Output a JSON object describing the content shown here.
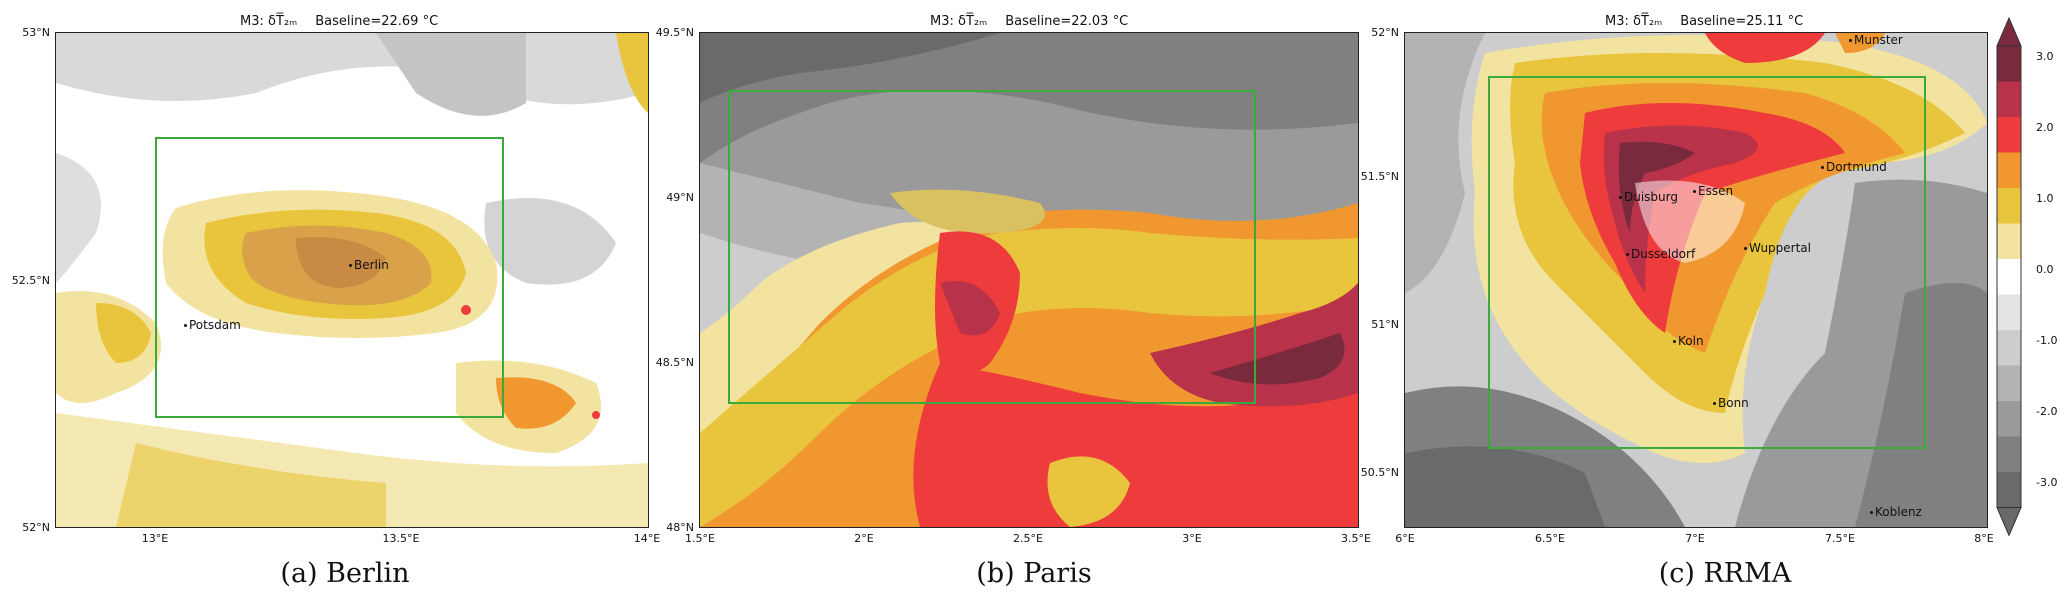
{
  "panels": [
    {
      "title": "M3: δT̅₂ₘ",
      "baseline": "Baseline=22.69 °C",
      "yticks": [
        "53°N",
        "52.5°N",
        "52°N"
      ],
      "xticks": [
        "13°E",
        "13.5°E",
        "14°E"
      ],
      "cities": [
        "Berlin",
        "Potsdam"
      ],
      "caption": "(a) Berlin"
    },
    {
      "title": "M3: δT̅₂ₘ",
      "baseline": "Baseline=22.03 °C",
      "yticks": [
        "49.5°N",
        "49°N",
        "48.5°N",
        "48°N"
      ],
      "xticks": [
        "1.5°E",
        "2°E",
        "2.5°E",
        "3°E",
        "3.5°E"
      ],
      "cities": [],
      "caption": "(b) Paris"
    },
    {
      "title": "M3: δT̅₂ₘ",
      "baseline": "Baseline=25.11 °C",
      "yticks": [
        "52°N",
        "51.5°N",
        "51°N",
        "50.5°N"
      ],
      "xticks": [
        "6°E",
        "6.5°E",
        "7°E",
        "7.5°E",
        "8°E"
      ],
      "cities": [
        "Munster",
        "Dortmund",
        "Duisburg",
        "Essen",
        "Dusseldorf",
        "Wuppertal",
        "Koln",
        "Bonn",
        "Koblenz"
      ],
      "caption": "(c) RRMA"
    }
  ],
  "colorbar": {
    "ticks": [
      "3.0",
      "2.0",
      "1.0",
      "0.0",
      "-1.0",
      "-2.0",
      "-3.0"
    ],
    "colors": [
      "#7a2a3d",
      "#b8334a",
      "#ee3b3b",
      "#f0972f",
      "#e8c53c",
      "#f3e3a0",
      "#ffffff",
      "#e4e4e4",
      "#cdcdcd",
      "#b3b3b3",
      "#9a9a9a",
      "#808080",
      "#6a6a6a"
    ]
  },
  "colors": {
    "box": "#3aaa3a",
    "accent_red": "#ee3b3b",
    "accent_orange": "#f0972f"
  }
}
